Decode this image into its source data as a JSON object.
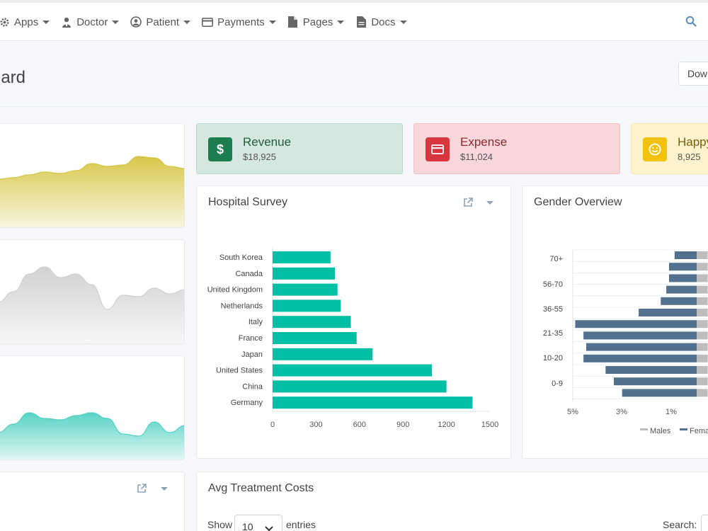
{
  "nav": {
    "items": [
      {
        "label": "Apps",
        "icon": "gear-icon"
      },
      {
        "label": "Doctor",
        "icon": "doctor-icon"
      },
      {
        "label": "Patient",
        "icon": "user-circle-icon"
      },
      {
        "label": "Payments",
        "icon": "credit-card-icon"
      },
      {
        "label": "Pages",
        "icon": "file-icon"
      },
      {
        "label": "Docs",
        "icon": "document-icon"
      }
    ],
    "search_icon": "search-icon"
  },
  "header": {
    "title": "ard",
    "download_label": "Dow"
  },
  "stats": [
    {
      "label": "Revenue",
      "value": "$18,925",
      "icon": "dollar-icon",
      "bg": "#d4e8df",
      "border": "#bcd9cb",
      "icon_bg": "#1e7d4f",
      "text_color": "#1d5e3c"
    },
    {
      "label": "Expense",
      "value": "$11,024",
      "icon": "credit-card-icon",
      "bg": "#f8d7da",
      "border": "#f1c0c5",
      "icon_bg": "#d9353f",
      "text_color": "#8a2a31"
    },
    {
      "label": "Happy",
      "value": "8,925",
      "icon": "smile-icon",
      "bg": "#fff3cd",
      "border": "#fde9a8",
      "icon_bg": "#f4c20d",
      "text_color": "#7a5d0a"
    }
  ],
  "survey": {
    "title": "Hospital Survey"
  },
  "gender": {
    "title": "Gender Overview"
  },
  "treatment": {
    "title": "Avg Treatment Costs",
    "show_label": "Show",
    "entries_value": "10",
    "entries_label": "entries",
    "search_label": "Search:"
  },
  "chart_data": [
    {
      "type": "bar",
      "orientation": "horizontal",
      "title": "Hospital Survey",
      "categories": [
        "South Korea",
        "Canada",
        "United Kingdom",
        "Netherlands",
        "Italy",
        "France",
        "Japan",
        "United States",
        "China",
        "Germany"
      ],
      "values": [
        400,
        430,
        448,
        470,
        540,
        580,
        690,
        1100,
        1200,
        1380
      ],
      "xlim": [
        0,
        1500
      ],
      "xticks": [
        "0",
        "300",
        "600",
        "900",
        "1200",
        "1500"
      ],
      "color": "#00bfa5"
    },
    {
      "type": "bar",
      "orientation": "horizontal",
      "stacked": "diverging",
      "title": "Gender Overview",
      "ytick_labels": [
        "70+",
        "56-70",
        "36-55",
        "21-35",
        "10-20",
        "0-9"
      ],
      "xticks": [
        "5%",
        "3%",
        "1%"
      ],
      "series": [
        {
          "name": "Males",
          "color": "#bdbdbd",
          "values": [
            0.8,
            0.8,
            0.8,
            0.8,
            0.8,
            0.8,
            0.8,
            0.8,
            0.8,
            0.8,
            0.8,
            0.8,
            0.8
          ]
        },
        {
          "name": "Females",
          "color": "#52718f",
          "values": [
            0.8,
            1.0,
            1.0,
            1.1,
            1.3,
            2.1,
            4.4,
            4.1,
            4.0,
            4.1,
            3.3,
            3.0,
            2.7
          ]
        }
      ],
      "legend": "bottom"
    },
    {
      "type": "area",
      "color": "#d6c441",
      "values": [
        40,
        42,
        46,
        50,
        48,
        52,
        62,
        58,
        60,
        72,
        70,
        58,
        55
      ]
    },
    {
      "type": "area",
      "color": "#cfcfcf",
      "values": [
        30,
        45,
        70,
        80,
        65,
        70,
        55,
        20,
        40,
        38,
        50,
        42,
        48
      ]
    },
    {
      "type": "area",
      "color": "#4fd1c2",
      "values": [
        10,
        22,
        38,
        30,
        28,
        34,
        38,
        30,
        8,
        5,
        25,
        10,
        20
      ]
    }
  ]
}
